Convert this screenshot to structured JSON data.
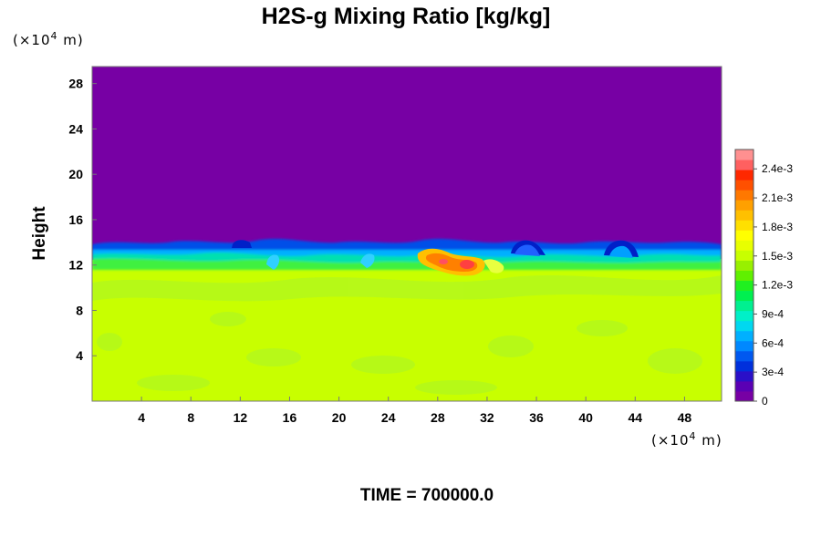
{
  "chart_data": {
    "type": "heatmap",
    "title": "H2S-g Mixing Ratio [kg/kg]",
    "ylabel": "Height",
    "xlabel": "",
    "x_unit_prefix": "(×10",
    "x_unit_exp": "4",
    "x_unit_suffix": " m)",
    "y_unit_prefix": "(×10",
    "y_unit_exp": "4",
    "y_unit_suffix": " m)",
    "xlim": [
      0,
      51
    ],
    "ylim": [
      0,
      29.5
    ],
    "x_ticks": [
      4,
      8,
      12,
      16,
      20,
      24,
      28,
      32,
      36,
      40,
      44,
      48
    ],
    "y_ticks": [
      4,
      8,
      12,
      16,
      20,
      24,
      28
    ],
    "colorbar": {
      "ticks": [
        "0",
        "3e-4",
        "6e-4",
        "9e-4",
        "1.2e-3",
        "1.5e-3",
        "1.8e-3",
        "2.1e-3",
        "2.4e-3"
      ],
      "tick_values": [
        0,
        0.0003,
        0.0006,
        0.0009,
        0.0012,
        0.0015,
        0.0018,
        0.0021,
        0.0024
      ],
      "range": [
        0,
        0.0026
      ],
      "colors": [
        "#7700a4",
        "#5a00b4",
        "#2a10c8",
        "#0030dc",
        "#0058f0",
        "#0088ff",
        "#00b0ff",
        "#00d8f0",
        "#00f0c8",
        "#00f090",
        "#00f050",
        "#20f020",
        "#60f000",
        "#98f000",
        "#c8ff00",
        "#e8ff00",
        "#ffff00",
        "#ffe000",
        "#ffc000",
        "#ffa000",
        "#ff7800",
        "#ff5000",
        "#ff2800",
        "#ff6060",
        "#ff9090"
      ]
    },
    "regions": {
      "upper_value": 0.0,
      "lower_value": 0.00175,
      "interface_height": 12.5,
      "max_value_location": [
        30,
        12.2
      ]
    }
  },
  "footer": {
    "time_label": "TIME = 700000.0"
  }
}
